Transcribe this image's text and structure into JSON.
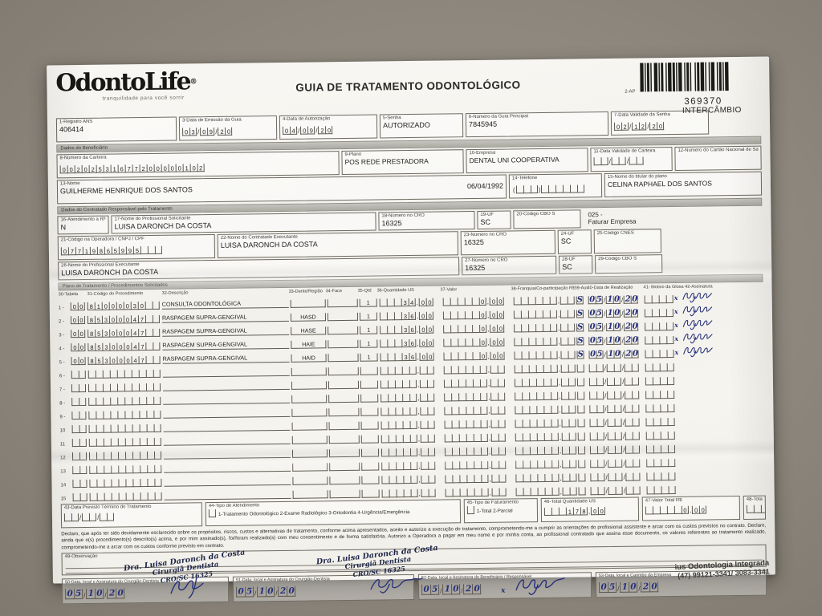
{
  "page": {
    "title": "GUIA DE TRATAMENTO ODONTOLÓGICO",
    "ap_label": "2-AP",
    "barcode_number": "369370",
    "barcode_caption": "INTERCÂMBIO"
  },
  "logo": {
    "name": "OdontoLife",
    "reg": "®",
    "tagline": "tranquilidade para você sorrir"
  },
  "guia": {
    "registro_ans": {
      "label": "1-Registro ANS",
      "value": "406414"
    },
    "data_emissao": {
      "label": "3-Data de Emissão da Guia",
      "value": "03/09/20"
    },
    "data_autorizacao": {
      "label": "4-Data de Autorização",
      "value": "04/09/20"
    },
    "senha": {
      "label": "5-Senha",
      "value": "AUTORIZADO"
    },
    "numero_guia_principal": {
      "label": "6-Número da Guia Principal",
      "value": "7845945"
    },
    "validade_senha": {
      "label": "7-Data Validade da Senha",
      "value": "02/12/20"
    }
  },
  "beneficiario": {
    "section_label": "Dados do Beneficiário",
    "carteira": {
      "label": "8-Número da Carteira",
      "value": "00202531677200000102"
    },
    "plano": {
      "label": "9-Plano",
      "value": "POS REDE PRESTADORA"
    },
    "empresa": {
      "label": "10-Empresa",
      "value": "DENTAL UNI COOPERATIVA"
    },
    "validade_carteira": {
      "label": "11-Data Validade de Carteira",
      "value": ""
    },
    "cns": {
      "label": "12-Número do Cartão Nacional de Saúde",
      "value": ""
    },
    "nome": {
      "label": "13-Nome",
      "value": "GUILHERME HENRIQUE DOS SANTOS",
      "nascimento": "06/04/1992"
    },
    "telefone": {
      "label": "14-Telefone",
      "value": ""
    },
    "titular": {
      "label": "15-Nome do titular do plano",
      "value": "CELINA RAPHAEL DOS SANTOS"
    }
  },
  "contratado": {
    "section_label": "Dados do Contratado Responsável pelo Tratamento",
    "rn": {
      "label": "16-Atendimento a RN",
      "value": "N"
    },
    "solicitante": {
      "label": "17-Nome do Profissional Solicitante",
      "value": "LUISA DARONCH DA COSTA"
    },
    "cro_solicitante": {
      "label": "18-Número no CRO",
      "value": "16325"
    },
    "uf_solicitante": {
      "label": "19-UF",
      "value": "SC"
    },
    "cbo_solicitante": {
      "label": "20-Código CBO S",
      "value": ""
    },
    "faturar_linha1": "025 -",
    "faturar_linha2": "Faturar Empresa",
    "codigo_operadora": {
      "label": "21-Código na Operadora / CNPJ / CPF",
      "value": "07719865995"
    },
    "contratado_executante": {
      "label": "22-Nome do Contratado Executante",
      "value": "LUISA DARONCH DA COSTA"
    },
    "cro_contratado": {
      "label": "23-Número no CRO",
      "value": "16325"
    },
    "uf_contratado": {
      "label": "24-UF",
      "value": "SC"
    },
    "cnes": {
      "label": "25-Código CNES",
      "value": ""
    },
    "executante": {
      "label": "26-Nome do Profissional Executante",
      "value": "LUISA DARONCH DA COSTA"
    },
    "cro_executante": {
      "label": "27-Número no CRO",
      "value": "16325"
    },
    "uf_executante": {
      "label": "28-UF",
      "value": "SC"
    },
    "cbo_executante": {
      "label": "29-Código CBO S",
      "value": ""
    }
  },
  "procedimentos": {
    "section_label": "Plano de Tratamento / Procedimentos Solicitados",
    "columns": [
      "30-Tabela",
      "31-Código do Procedimento",
      "32-Descrição",
      "33-Dente/Região",
      "34-Face",
      "35-Qtd",
      "36-Quantidade US",
      "37-Valor",
      "38-Franquia/Co-participação R$",
      "39-Aut",
      "40-Data de Realização",
      "41- Motivo da Glosa 42-Assinatura"
    ],
    "rows": [
      {
        "n": "1 -",
        "tabela": "00",
        "codigo": "81000030",
        "descricao": "CONSULTA ODONTOLÓGICA",
        "dente": "",
        "face": "",
        "qtd": "1",
        "us": "34,00",
        "valor": "0,00",
        "franquia": "",
        "aut": "S",
        "data": "05/10/20",
        "assinatura": true
      },
      {
        "n": "2 -",
        "tabela": "00",
        "codigo": "85300047",
        "descricao": "RASPAGEM SUPRA-GENGIVAL",
        "dente": "HASD",
        "face": "",
        "qtd": "1",
        "us": "36,00",
        "valor": "0,00",
        "franquia": "",
        "aut": "S",
        "data": "05/10/20",
        "assinatura": true
      },
      {
        "n": "3 -",
        "tabela": "00",
        "codigo": "85300047",
        "descricao": "RASPAGEM SUPRA-GENGIVAL",
        "dente": "HASE",
        "face": "",
        "qtd": "1",
        "us": "36,00",
        "valor": "0,00",
        "franquia": "",
        "aut": "S",
        "data": "05/10/20",
        "assinatura": true
      },
      {
        "n": "4 -",
        "tabela": "00",
        "codigo": "85300047",
        "descricao": "RASPAGEM SUPRA-GENGIVAL",
        "dente": "HAIE",
        "face": "",
        "qtd": "1",
        "us": "36,00",
        "valor": "0,00",
        "franquia": "",
        "aut": "S",
        "data": "05/10/20",
        "assinatura": true
      },
      {
        "n": "5 -",
        "tabela": "00",
        "codigo": "85300047",
        "descricao": "RASPAGEM SUPRA-GENGIVAL",
        "dente": "HAID",
        "face": "",
        "qtd": "1",
        "us": "36,00",
        "valor": "0,00",
        "franquia": "",
        "aut": "S",
        "data": "05/10/20",
        "assinatura": true
      },
      {
        "n": "6 -",
        "tabela": "",
        "codigo": "",
        "descricao": "",
        "dente": "",
        "face": "",
        "qtd": "",
        "us": "",
        "valor": "",
        "franquia": "",
        "aut": "",
        "data": "",
        "assinatura": false
      },
      {
        "n": "7 -",
        "tabela": "",
        "codigo": "",
        "descricao": "",
        "dente": "",
        "face": "",
        "qtd": "",
        "us": "",
        "valor": "",
        "franquia": "",
        "aut": "",
        "data": "",
        "assinatura": false
      },
      {
        "n": "8 -",
        "tabela": "",
        "codigo": "",
        "descricao": "",
        "dente": "",
        "face": "",
        "qtd": "",
        "us": "",
        "valor": "",
        "franquia": "",
        "aut": "",
        "data": "",
        "assinatura": false
      },
      {
        "n": "9 -",
        "tabela": "",
        "codigo": "",
        "descricao": "",
        "dente": "",
        "face": "",
        "qtd": "",
        "us": "",
        "valor": "",
        "franquia": "",
        "aut": "",
        "data": "",
        "assinatura": false
      },
      {
        "n": "10",
        "tabela": "",
        "codigo": "",
        "descricao": "",
        "dente": "",
        "face": "",
        "qtd": "",
        "us": "",
        "valor": "",
        "franquia": "",
        "aut": "",
        "data": "",
        "assinatura": false
      },
      {
        "n": "11",
        "tabela": "",
        "codigo": "",
        "descricao": "",
        "dente": "",
        "face": "",
        "qtd": "",
        "us": "",
        "valor": "",
        "franquia": "",
        "aut": "",
        "data": "",
        "assinatura": false
      },
      {
        "n": "12",
        "tabela": "",
        "codigo": "",
        "descricao": "",
        "dente": "",
        "face": "",
        "qtd": "",
        "us": "",
        "valor": "",
        "franquia": "",
        "aut": "",
        "data": "",
        "assinatura": false
      },
      {
        "n": "13",
        "tabela": "",
        "codigo": "",
        "descricao": "",
        "dente": "",
        "face": "",
        "qtd": "",
        "us": "",
        "valor": "",
        "franquia": "",
        "aut": "",
        "data": "",
        "assinatura": false
      },
      {
        "n": "14",
        "tabela": "",
        "codigo": "",
        "descricao": "",
        "dente": "",
        "face": "",
        "qtd": "",
        "us": "",
        "valor": "",
        "franquia": "",
        "aut": "",
        "data": "",
        "assinatura": false
      },
      {
        "n": "15",
        "tabela": "",
        "codigo": "",
        "descricao": "",
        "dente": "",
        "face": "",
        "qtd": "",
        "us": "",
        "valor": "",
        "franquia": "",
        "aut": "",
        "data": "",
        "assinatura": false
      }
    ]
  },
  "totais": {
    "termino": {
      "label": "43-Data Previsto Término do Tratamento",
      "value": ""
    },
    "tipo_atendimento": {
      "label": "44-Tipo de Atendimento",
      "options": "1-Tratamento Odontológico  2-Exame Radiológico  3-Ortodontia  4-Urgência/Emergência",
      "value": ""
    },
    "tipo_faturamento": {
      "label": "45-Tipo de Faturamento",
      "options": "1-Total  2-Parcial",
      "value": ""
    },
    "total_us": {
      "label": "46-Total Quantidade US",
      "value": "178,00"
    },
    "valor_total": {
      "label": "47-Valor Total R$",
      "value": "0,00"
    },
    "total_franquia": {
      "label": "48-Total Franquia / Co-participação R$",
      "value": ""
    }
  },
  "declaracao": "Declaro, que após ter sido devidamente esclarecido sobre os propósitos, riscos, custos e alternativas de tratamento, conforme acima apresentados, aceito e autorizo a execução do tratamento, comprometendo-me a cumprir as orientações do profissional assistente e arcar com os custos previstos no contrato. Declaro, ainda que o(s) procedimento(s) descrito(s) acima, e por mim assinado(s), foi/foram realizado(s) com meu consentimento e de forma satisfatória. Autorizo a Operadora a pagar em meu nome e por minha conta, ao profissional contratado que assina esse documento, os valores referentes ao tratamento realizado, comprometendo-me a arcar com os custos conforme previsto em contrato.",
  "observacao": {
    "label": "49-Observação",
    "value": ""
  },
  "rodape": {
    "f50": {
      "label": "50-Data, local e Assinatura do Cirurgião-Dentista",
      "data": "05/10/20"
    },
    "f51": {
      "label": "51-Data, local e Assinatura do Cirurgião-Dentista",
      "data": "05/10/20"
    },
    "f52": {
      "label": "52-Data, local e Assinatura do Beneficiário / Responsável",
      "data": "05/10/20"
    },
    "f53": {
      "label": "53-Data, local e Carimbo da Empresa",
      "data": "05/10/20"
    },
    "carimbo_profissional": {
      "linha1": "Dra. Luisa Daronch da Costa",
      "linha2": "Cirurgiã Dentista",
      "linha3": "CRO/SC 16325"
    },
    "carimbo_empresa": {
      "linha1": "ius Odontologia Integrada",
      "linha2": "(47) 99121-3341/ 3083-3341"
    }
  }
}
